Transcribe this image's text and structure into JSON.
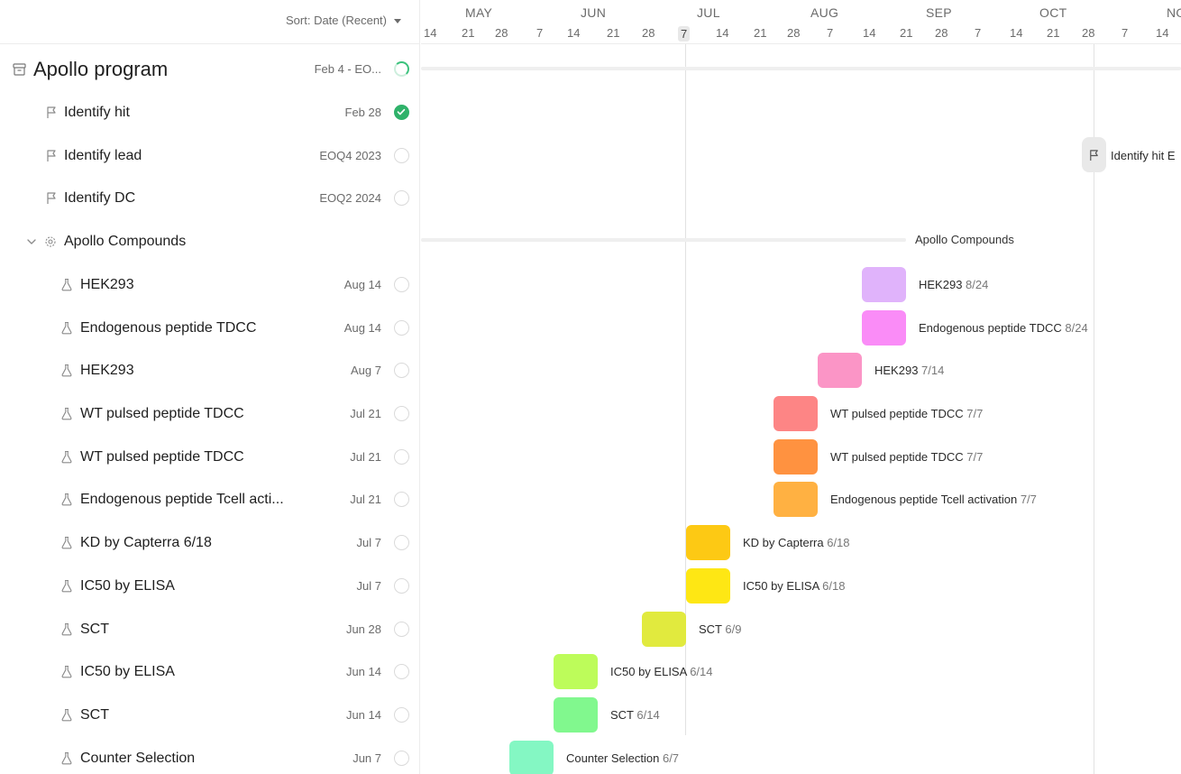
{
  "toolbar": {
    "sort_label": "Sort: Date (Recent)"
  },
  "timeline": {
    "months": [
      "MAY",
      "JUN",
      "JUL",
      "AUG",
      "SEP",
      "OCT",
      "NOV"
    ],
    "days": [
      "14",
      "21",
      "28",
      "7",
      "14",
      "21",
      "28",
      "7",
      "14",
      "21",
      "28",
      "7",
      "14",
      "21",
      "28",
      "7",
      "14",
      "21",
      "28",
      "7",
      "14"
    ],
    "today_index": 7
  },
  "project": {
    "title": "Apollo program",
    "date": "Feb 4 - EO...",
    "status": "in-progress"
  },
  "milestones": [
    {
      "label": "Identify hit",
      "date": "Feb 28",
      "status": "done"
    },
    {
      "label": "Identify lead",
      "date": "EOQ4 2023",
      "status": "open"
    },
    {
      "label": "Identify DC",
      "date": "EOQ2 2024",
      "status": "open"
    }
  ],
  "group": {
    "label": "Apollo Compounds"
  },
  "tasks": [
    {
      "label": "HEK293",
      "date": "Aug 14",
      "bar_label": "HEK293",
      "bar_date": "8/24",
      "color": "#e0b3fb"
    },
    {
      "label": "Endogenous peptide TDCC",
      "date": "Aug 14",
      "bar_label": "Endogenous peptide TDCC",
      "bar_date": "8/24",
      "color": "#fa8cf7"
    },
    {
      "label": "HEK293",
      "date": "Aug 7",
      "bar_label": "HEK293",
      "bar_date": "7/14",
      "color": "#fb95c6"
    },
    {
      "label": "WT pulsed peptide TDCC",
      "date": "Jul 21",
      "bar_label": "WT pulsed peptide TDCC",
      "bar_date": "7/7",
      "color": "#fd8585"
    },
    {
      "label": "WT pulsed peptide TDCC",
      "date": "Jul 21",
      "bar_label": "WT pulsed peptide TDCC",
      "bar_date": "7/7",
      "color": "#ff9240"
    },
    {
      "label": "Endogenous peptide Tcell acti...",
      "date": "Jul 21",
      "bar_label": "Endogenous peptide Tcell activation",
      "bar_date": "7/7",
      "color": "#ffb142"
    },
    {
      "label": "KD by Capterra 6/18",
      "date": "Jul 7",
      "bar_label": "KD by Capterra",
      "bar_date": "6/18",
      "color": "#fdc914"
    },
    {
      "label": "IC50 by ELISA",
      "date": "Jul 7",
      "bar_label": "IC50 by ELISA ",
      "bar_date": "6/18",
      "color": "#fee714"
    },
    {
      "label": "SCT",
      "date": "Jun 28",
      "bar_label": "SCT",
      "bar_date": "6/9",
      "color": "#e1ea3e"
    },
    {
      "label": "IC50 by ELISA",
      "date": "Jun 14",
      "bar_label": "IC50 by ELISA",
      "bar_date": "6/14",
      "color": "#bdfc5a"
    },
    {
      "label": "SCT",
      "date": "Jun 14",
      "bar_label": "SCT",
      "bar_date": "6/14",
      "color": "#81f88e"
    },
    {
      "label": "Counter Selection",
      "date": "Jun 7",
      "bar_label": "Counter Selection",
      "bar_date": "6/7",
      "color": "#84f7c3"
    }
  ],
  "chart_milestone": {
    "label": "Identify hit E"
  }
}
